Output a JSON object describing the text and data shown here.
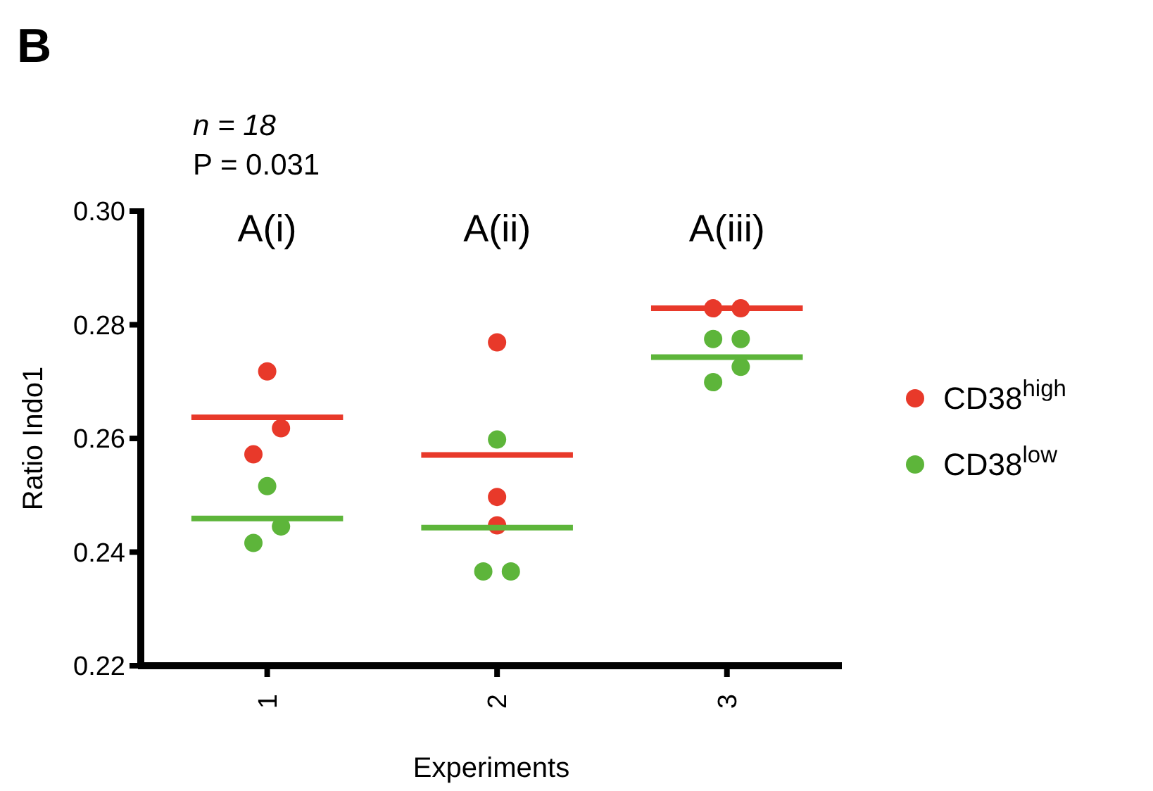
{
  "chart_data": {
    "type": "scatter",
    "title": "B",
    "xlabel": "Experiments",
    "ylabel": "Ratio Indo1",
    "xlim": [
      0.45,
      3.5
    ],
    "xticks": [
      1,
      2,
      3
    ],
    "ylim": [
      0.22,
      0.3
    ],
    "yticks": [
      {
        "value": 0.22,
        "label": "0.22"
      },
      {
        "value": 0.24,
        "label": "0.24"
      },
      {
        "value": 0.26,
        "label": "0.26"
      },
      {
        "value": 0.28,
        "label": "0.28"
      },
      {
        "value": 0.3,
        "label": "0.30"
      }
    ],
    "grid": false,
    "legend": "right",
    "marker": "circle",
    "series": [
      {
        "name": "CD38$^{high}$",
        "color": "#e8392a",
        "x": [
          1.0,
          1.06,
          0.94,
          2.0,
          2.0,
          2.0,
          2.94,
          3.06
        ],
        "values": [
          0.2718,
          0.2618,
          0.2572,
          0.2769,
          0.2497,
          0.2447,
          0.2829,
          0.2829
        ]
      },
      {
        "name": "CD38$^{low}$",
        "color": "#5db53a",
        "x": [
          1.0,
          1.06,
          0.94,
          2.0,
          1.94,
          2.06,
          2.94,
          3.06,
          3.06,
          2.94
        ],
        "values": [
          0.2516,
          0.2445,
          0.2416,
          0.2598,
          0.2366,
          0.2366,
          0.2775,
          0.2775,
          0.2726,
          0.2699
        ]
      },
      {
        "type": "line",
        "color": "#e8392a",
        "marker": "none",
        "x": [
          0.67,
          1.33,
          1.5,
          1.67,
          2.33,
          2.5,
          2.67,
          3.33
        ],
        "values": [
          0.2637,
          0.2637,
          null,
          0.2571,
          0.2571,
          null,
          0.2829,
          0.2829
        ]
      },
      {
        "type": "line",
        "color": "#5db53a",
        "marker": "none",
        "x": [
          0.67,
          1.33,
          1.5,
          1.67,
          2.33,
          2.5,
          2.67,
          3.33
        ],
        "values": [
          0.2459,
          0.2459,
          null,
          0.2443,
          0.2443,
          null,
          0.2743,
          0.2743
        ]
      }
    ],
    "annotations": [
      "n = 18",
      "P = 0.031",
      "A(i)",
      "A(ii)",
      "A(iii)"
    ]
  }
}
